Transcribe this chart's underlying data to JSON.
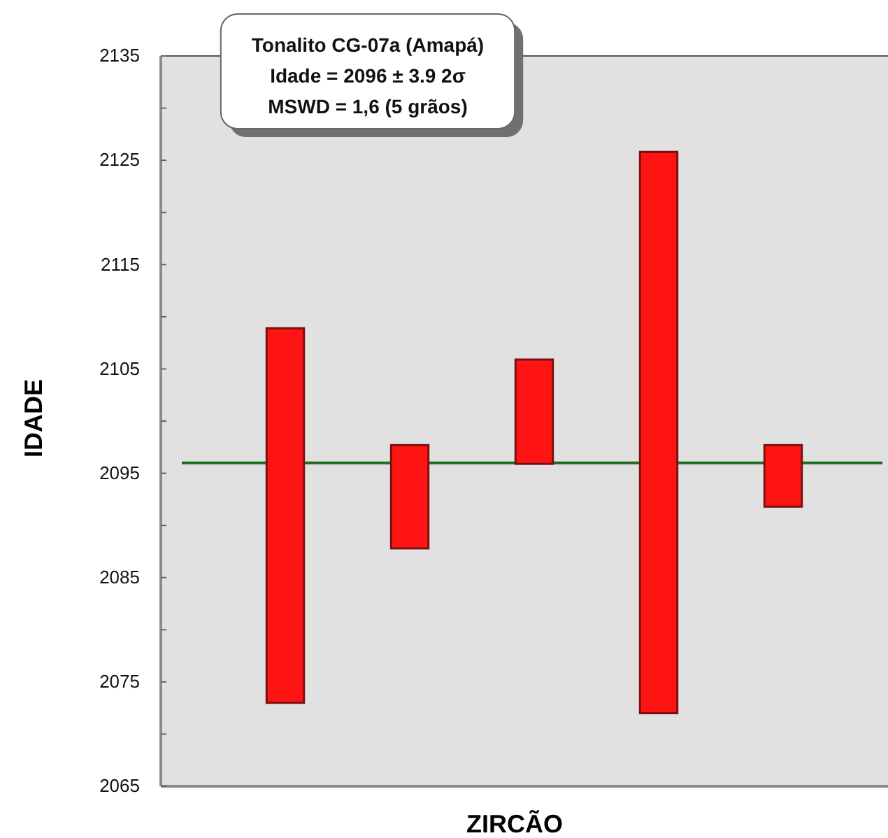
{
  "chart_data": {
    "type": "bar",
    "categories": [
      null,
      null,
      null,
      null,
      null
    ],
    "base": [
      2073,
      2087.8,
      2095.9,
      2072,
      2091.8
    ],
    "values": [
      35.9,
      9.9,
      10,
      53.8,
      5.9
    ],
    "color": "#ff1414",
    "ylim": [
      2065,
      2135
    ],
    "yticks": [
      2065,
      {
        "value": 2070,
        "label": null
      },
      2075,
      {
        "value": 2080,
        "label": null
      },
      2085,
      {
        "value": 2090,
        "label": null
      },
      2095,
      {
        "value": 2100,
        "label": null
      },
      2105,
      {
        "value": 2110,
        "label": null
      },
      2115,
      {
        "value": 2120,
        "label": null
      },
      2125,
      {
        "value": 2130,
        "label": null
      },
      2135
    ],
    "ylabel": "IDADE",
    "xlabel": "ZIRCÃO",
    "tick_labels": "y",
    "ref_lines": [
      {
        "axis": "y",
        "value": 2096,
        "color": "#1f6e1f"
      }
    ],
    "annotations": [
      "Tonalito CG-07a (Amapá)",
      "Idade = 2096 ± 3.9 2σ",
      "MSWD = 1,6 (5 grãos)"
    ]
  }
}
